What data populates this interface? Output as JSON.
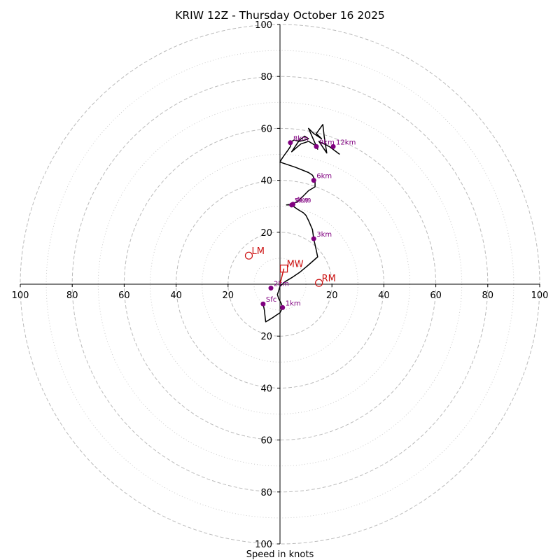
{
  "chart_data": {
    "type": "hodograph",
    "title": "KRIW 12Z - Thursday October 16 2025",
    "xlabel": "Speed in knots",
    "range": [
      -100,
      100
    ],
    "dashed_rings": [
      20,
      40,
      60,
      80,
      100
    ],
    "dotted_rings": [
      10,
      30,
      50,
      70,
      90
    ],
    "tick_labels": {
      "x": [
        {
          "v": -100,
          "t": "100"
        },
        {
          "v": -80,
          "t": "80"
        },
        {
          "v": -60,
          "t": "60"
        },
        {
          "v": -40,
          "t": "40"
        },
        {
          "v": -20,
          "t": "20"
        },
        {
          "v": 20,
          "t": "20"
        },
        {
          "v": 40,
          "t": "40"
        },
        {
          "v": 60,
          "t": "60"
        },
        {
          "v": 80,
          "t": "80"
        },
        {
          "v": 100,
          "t": "100"
        }
      ],
      "y": [
        {
          "v": 100,
          "t": "100"
        },
        {
          "v": 80,
          "t": "80"
        },
        {
          "v": 60,
          "t": "60"
        },
        {
          "v": 40,
          "t": "40"
        },
        {
          "v": 20,
          "t": "20"
        },
        {
          "v": -20,
          "t": "20"
        },
        {
          "v": -40,
          "t": "40"
        },
        {
          "v": -60,
          "t": "60"
        },
        {
          "v": -80,
          "t": "80"
        },
        {
          "v": -100,
          "t": "100"
        }
      ]
    },
    "trace": [
      [
        -6.5,
        -7.6
      ],
      [
        -6.0,
        -10.0
      ],
      [
        -5.8,
        -12.0
      ],
      [
        -5.5,
        -14.5
      ],
      [
        -3.0,
        -13.0
      ],
      [
        -1.5,
        -12.0
      ],
      [
        0.0,
        -11.0
      ],
      [
        1.0,
        -9.0
      ],
      [
        0.5,
        -7.5
      ],
      [
        -0.5,
        -5.5
      ],
      [
        -1.0,
        -4.0
      ],
      [
        -0.5,
        -2.5
      ],
      [
        0.0,
        -0.8
      ],
      [
        2.0,
        1.0
      ],
      [
        4.5,
        2.5
      ],
      [
        7.5,
        4.5
      ],
      [
        10.5,
        7.0
      ],
      [
        14.5,
        10.5
      ],
      [
        14.0,
        13.0
      ],
      [
        13.0,
        17.5
      ],
      [
        12.5,
        21.0
      ],
      [
        11.0,
        24.5
      ],
      [
        10.0,
        26.5
      ],
      [
        9.0,
        27.5
      ],
      [
        6.5,
        29.0
      ],
      [
        4.5,
        30.5
      ],
      [
        2.5,
        30.5
      ],
      [
        4.5,
        30.8
      ],
      [
        7.0,
        32.0
      ],
      [
        9.0,
        34.0
      ],
      [
        11.0,
        36.0
      ],
      [
        13.5,
        37.5
      ],
      [
        13.5,
        40.0
      ],
      [
        12.5,
        42.0
      ],
      [
        11.0,
        43.0
      ],
      [
        6.0,
        45.0
      ],
      [
        0.0,
        47.0
      ],
      [
        0.5,
        48.0
      ],
      [
        1.5,
        49.5
      ],
      [
        3.0,
        51.5
      ],
      [
        4.0,
        53.0
      ],
      [
        4.5,
        55.0
      ],
      [
        5.5,
        55.5
      ],
      [
        7.5,
        55.0
      ],
      [
        9.5,
        55.5
      ],
      [
        11.0,
        56.0
      ],
      [
        9.5,
        57.0
      ],
      [
        7.5,
        55.5
      ],
      [
        4.5,
        51.0
      ],
      [
        8.0,
        54.0
      ],
      [
        11.0,
        55.0
      ],
      [
        13.5,
        53.5
      ],
      [
        14.5,
        52.0
      ],
      [
        11.0,
        60.0
      ],
      [
        13.0,
        58.0
      ],
      [
        16.0,
        56.0
      ],
      [
        14.0,
        58.0
      ],
      [
        16.5,
        61.5
      ],
      [
        17.0,
        57.0
      ],
      [
        18.0,
        50.5
      ],
      [
        15.0,
        55.0
      ],
      [
        19.0,
        53.0
      ],
      [
        23.0,
        50.0
      ]
    ],
    "height_markers": [
      {
        "label": "Sfc",
        "u": -6.5,
        "v": -7.6
      },
      {
        "label": "1km",
        "u": 1.0,
        "v": -9.0
      },
      {
        "label": "2km",
        "u": -3.5,
        "v": -1.5
      },
      {
        "label": "3km",
        "u": 13.0,
        "v": 17.5
      },
      {
        "label": "4km",
        "u": 5.0,
        "v": 30.8
      },
      {
        "label": "5km",
        "u": 4.5,
        "v": 30.5
      },
      {
        "label": "6km",
        "u": 13.0,
        "v": 40.0
      },
      {
        "label": "8km",
        "u": 4.0,
        "v": 54.5
      },
      {
        "label": "9km",
        "u": 14.0,
        "v": 53.0
      },
      {
        "label": "12km",
        "u": 20.5,
        "v": 53.0
      }
    ],
    "storm_motion": [
      {
        "label": "LM",
        "u": -12.0,
        "v": 11.0,
        "marker": "circle"
      },
      {
        "label": "MW",
        "u": 1.5,
        "v": 6.0,
        "marker": "square"
      },
      {
        "label": "RM",
        "u": 15.0,
        "v": 0.5,
        "marker": "circle"
      }
    ],
    "shear_vector": {
      "from": [
        0,
        0
      ],
      "to": [
        1.5,
        6.0
      ]
    },
    "colors": {
      "trace": "#000000",
      "marker": "#800080",
      "storm": "#cc1111",
      "dashed_ring": "#bbbbbb",
      "dotted_ring": "#cccccc"
    }
  }
}
